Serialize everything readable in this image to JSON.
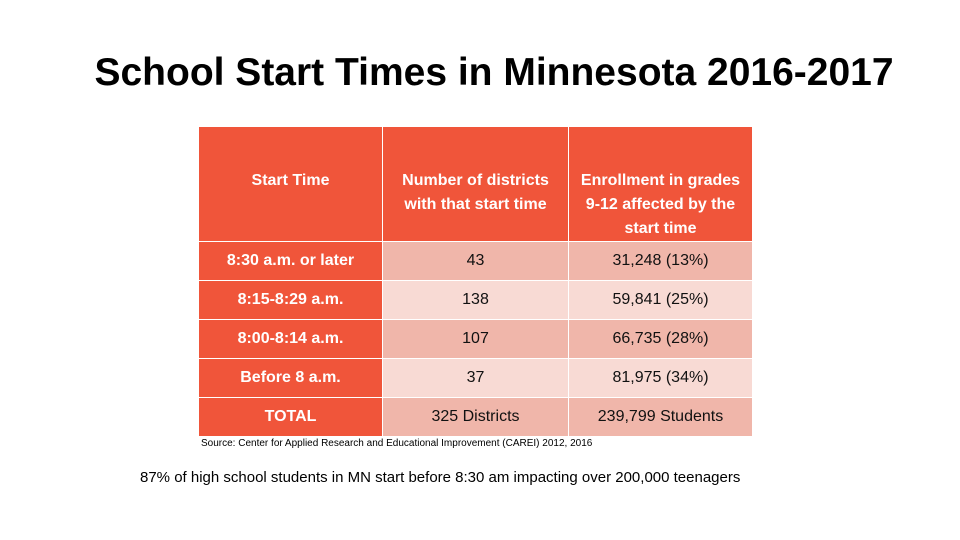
{
  "slide": {
    "title": "School Start Times in Minnesota 2016-2017",
    "source": "Source: Center for Applied Research and Educational Improvement (CAREI) 2012, 2016",
    "footnote": "87% of high school students in MN start before 8:30 am impacting over 200,000  teenagers"
  },
  "table": {
    "headers": [
      "Start Time",
      "Number of districts with that start time",
      "Enrollment in grades 9-12 affected by the start time"
    ],
    "rows": [
      {
        "start_time": "8:30 a.m. or later",
        "districts": "43",
        "enrollment": "31,248 (13%)"
      },
      {
        "start_time": "8:15-8:29 a.m.",
        "districts": "138",
        "enrollment": "59,841 (25%)"
      },
      {
        "start_time": "8:00-8:14 a.m.",
        "districts": "107",
        "enrollment": "66,735 (28%)"
      },
      {
        "start_time": "Before 8 a.m.",
        "districts": "37",
        "enrollment": "81,975 (34%)"
      },
      {
        "start_time": "TOTAL",
        "districts": "325 Districts",
        "enrollment": "239,799 Students"
      }
    ]
  },
  "colors": {
    "header_fill": "#f0553a",
    "row_dark_fill": "#f0b6aa",
    "row_light_fill": "#f8dad4"
  }
}
